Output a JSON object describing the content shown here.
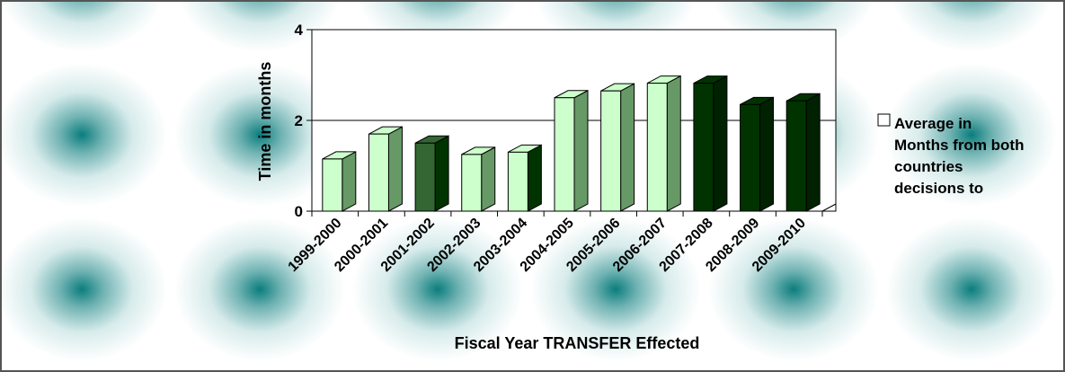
{
  "chart_data": {
    "type": "bar3d",
    "x_label": "Fiscal Year TRANSFER Effected",
    "y_label": "Time in months",
    "categories": [
      "1999-2000",
      "2000-2001",
      "2001-2002",
      "2002-2003",
      "2003-2004",
      "2004-2005",
      "2005-2006",
      "2006-2007",
      "2007-2008",
      "2008-2009",
      "2009-2010"
    ],
    "series": [
      {
        "name": "Average in Months from both countries decisions to",
        "color": "#ccffcc",
        "values": [
          1.15,
          1.7,
          1.5,
          1.25,
          1.3,
          2.5,
          2.65,
          2.82,
          2.82,
          2.35,
          2.43
        ],
        "colors": [
          "#ccffcc",
          "#ccffcc",
          "#336633",
          "#ccffcc",
          "#ccffcc",
          "#ccffcc",
          "#ccffcc",
          "#ccffcc",
          "#003300",
          "#003300",
          "#003300"
        ],
        "side_colors": [
          "#669966",
          "#669966",
          "#003300",
          "#669966",
          "#003300",
          "#669966",
          "#669966",
          "#669966",
          "#002200",
          "#002200",
          "#002200"
        ]
      }
    ],
    "ylim": [
      0,
      4
    ],
    "yticks": [
      0,
      2,
      4
    ],
    "grid": true,
    "legend": "right"
  }
}
